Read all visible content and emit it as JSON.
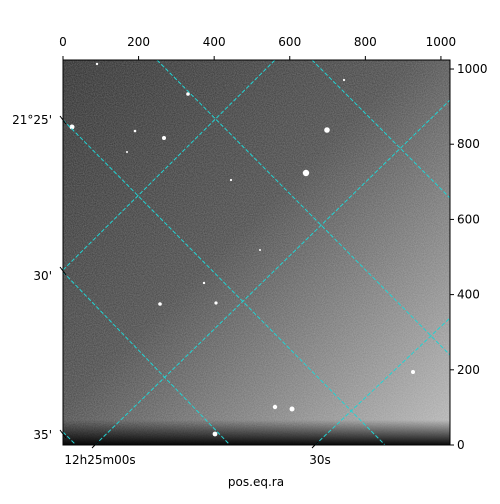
{
  "chart_data": {
    "type": "image",
    "xlabel": "pos.eq.ra",
    "xlim": [
      0,
      1024
    ],
    "xticks": [
      0,
      200,
      400,
      600,
      800,
      1000
    ],
    "ylim": [
      0,
      1024
    ],
    "yticks": [
      0,
      200,
      400,
      600,
      800,
      1000
    ],
    "dec_tick_labels": [
      "21°25'",
      "30'",
      "35'"
    ],
    "ra_tick_labels": [
      "12h25m00s",
      "30s"
    ],
    "grid_color": "#22d3d3"
  }
}
